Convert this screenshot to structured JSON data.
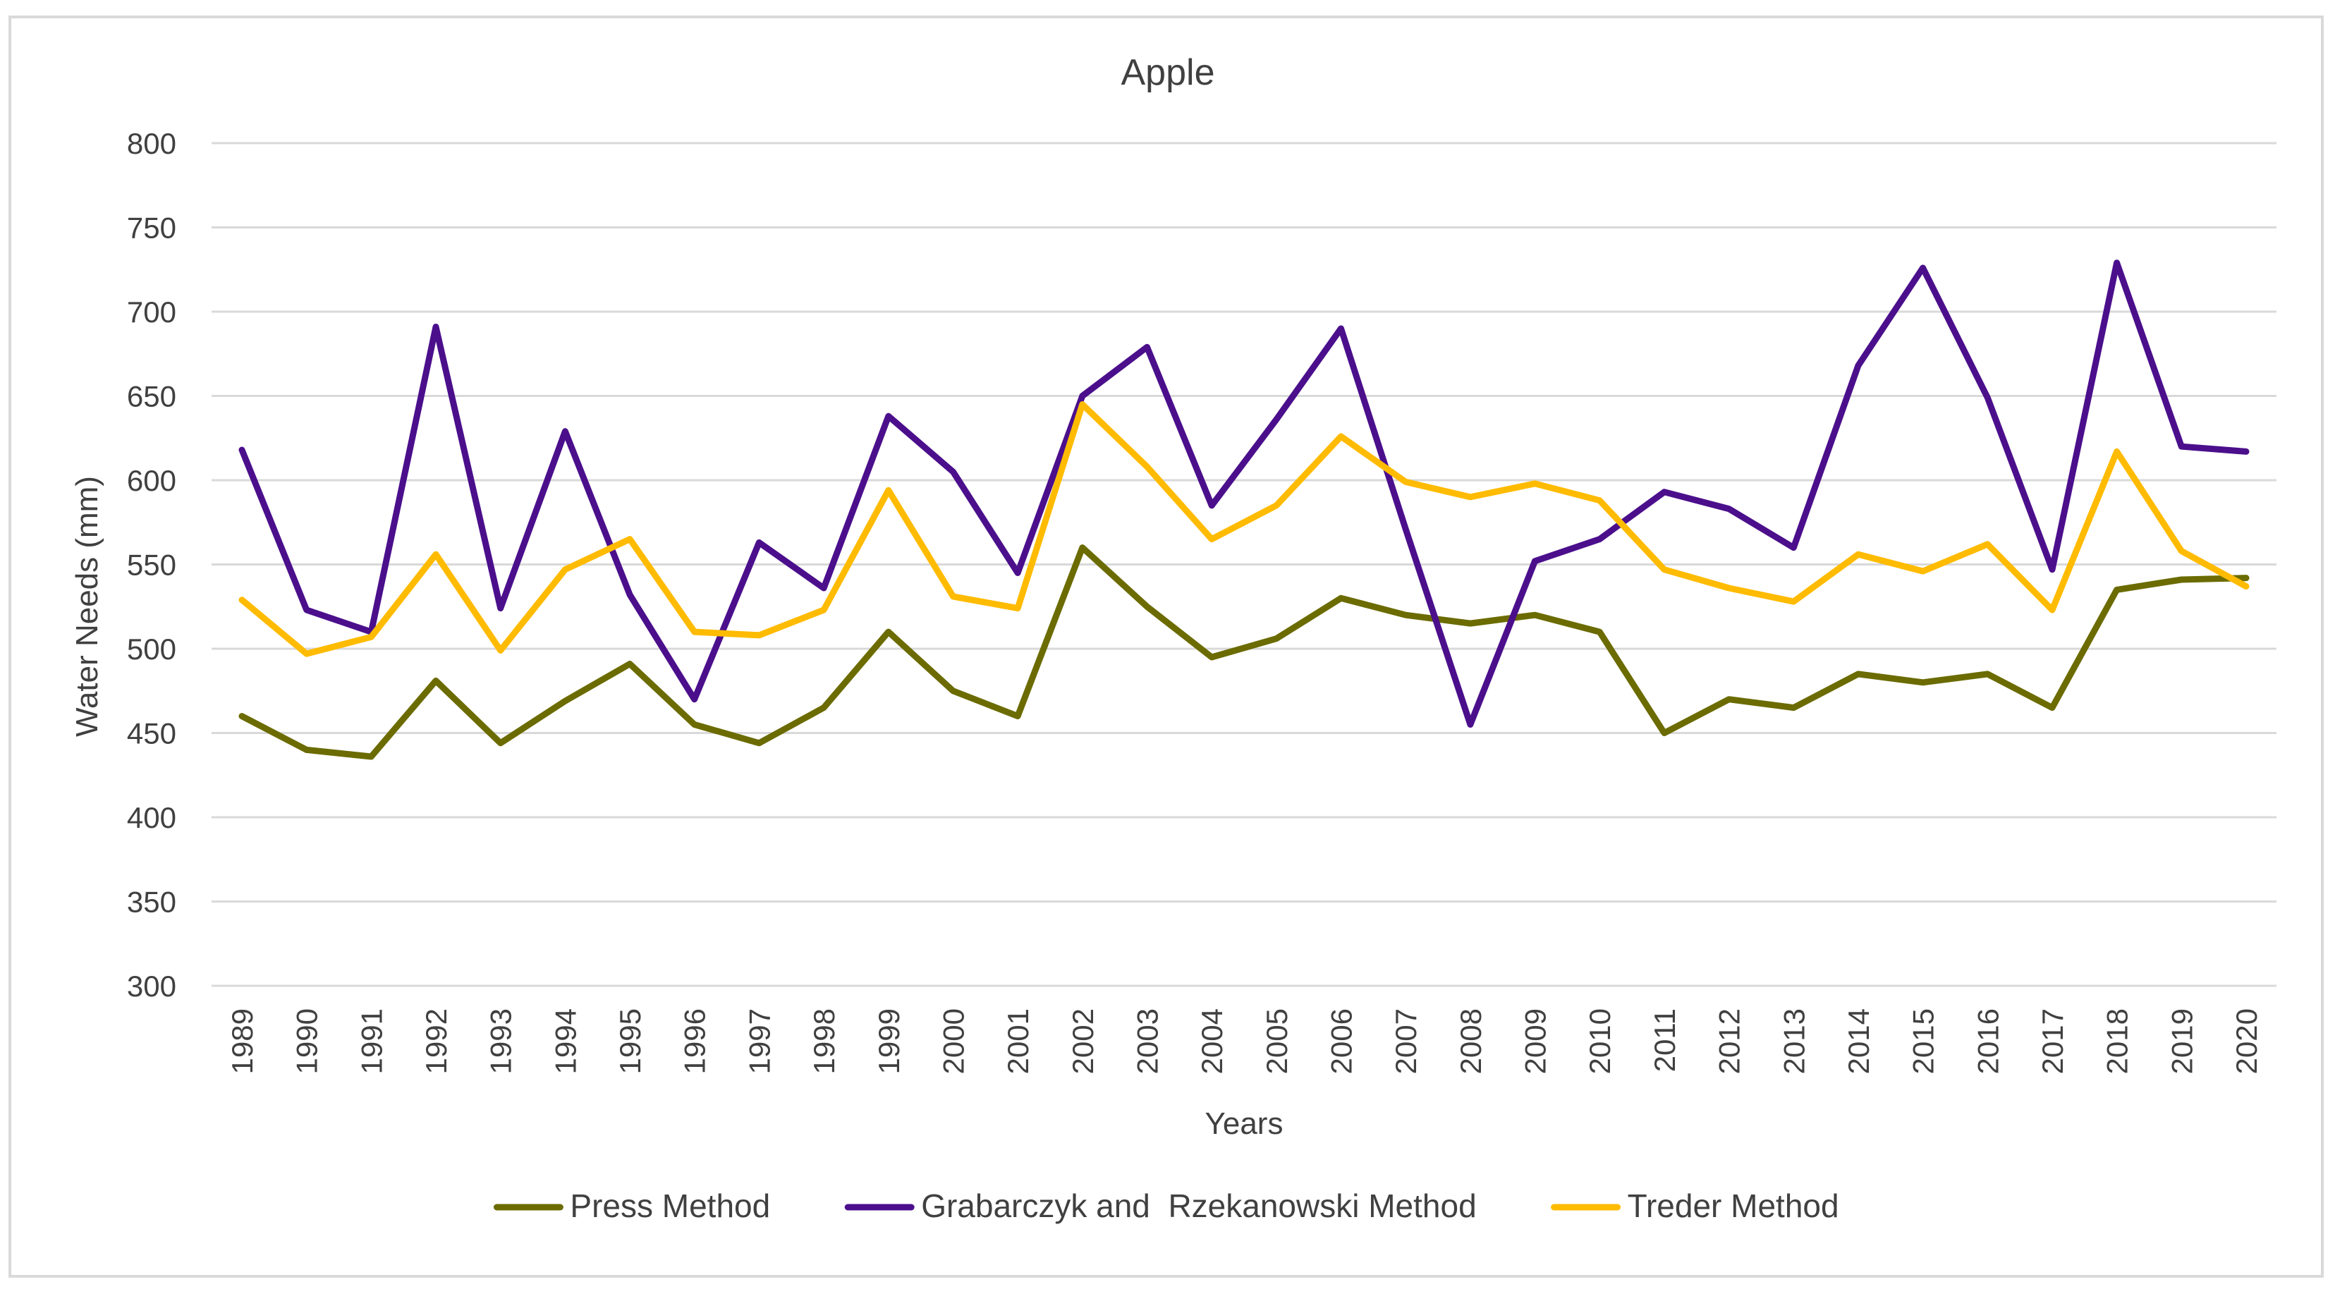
{
  "chart_data": {
    "type": "line",
    "title": "Apple",
    "xlabel": "Years",
    "ylabel": "Water Needs (mm)",
    "ylim": [
      300,
      800
    ],
    "yticks": [
      300,
      350,
      400,
      450,
      500,
      550,
      600,
      650,
      700,
      750,
      800
    ],
    "grid": true,
    "legend_position": "bottom",
    "categories": [
      "1989",
      "1990",
      "1991",
      "1992",
      "1993",
      "1994",
      "1995",
      "1996",
      "1997",
      "1998",
      "1999",
      "2000",
      "2001",
      "2002",
      "2003",
      "2004",
      "2005",
      "2006",
      "2007",
      "2008",
      "2009",
      "2010",
      "2011",
      "2012",
      "2013",
      "2014",
      "2015",
      "2016",
      "2017",
      "2018",
      "2019",
      "2020"
    ],
    "series": [
      {
        "name": "Press Method",
        "color": "#6b6b00",
        "values": [
          460,
          440,
          436,
          481,
          444,
          469,
          491,
          455,
          444,
          465,
          510,
          475,
          460,
          560,
          525,
          495,
          506,
          530,
          520,
          515,
          520,
          510,
          450,
          470,
          465,
          485,
          480,
          485,
          465,
          535,
          541,
          542
        ]
      },
      {
        "name": "Grabarczyk and  Rzekanowski Method",
        "color": "#4b0f8c",
        "values": [
          618,
          523,
          510,
          691,
          524,
          629,
          532,
          470,
          563,
          536,
          638,
          605,
          545,
          650,
          679,
          585,
          636,
          690,
          571,
          455,
          552,
          565,
          593,
          583,
          560,
          668,
          726,
          649,
          547,
          729,
          620,
          617
        ]
      },
      {
        "name": "Treder Method",
        "color": "#ffbb00",
        "values": [
          529,
          497,
          507,
          556,
          499,
          547,
          565,
          510,
          508,
          523,
          594,
          531,
          524,
          645,
          608,
          565,
          585,
          626,
          599,
          590,
          598,
          588,
          547,
          536,
          528,
          556,
          546,
          562,
          523,
          617,
          558,
          537
        ]
      }
    ]
  }
}
